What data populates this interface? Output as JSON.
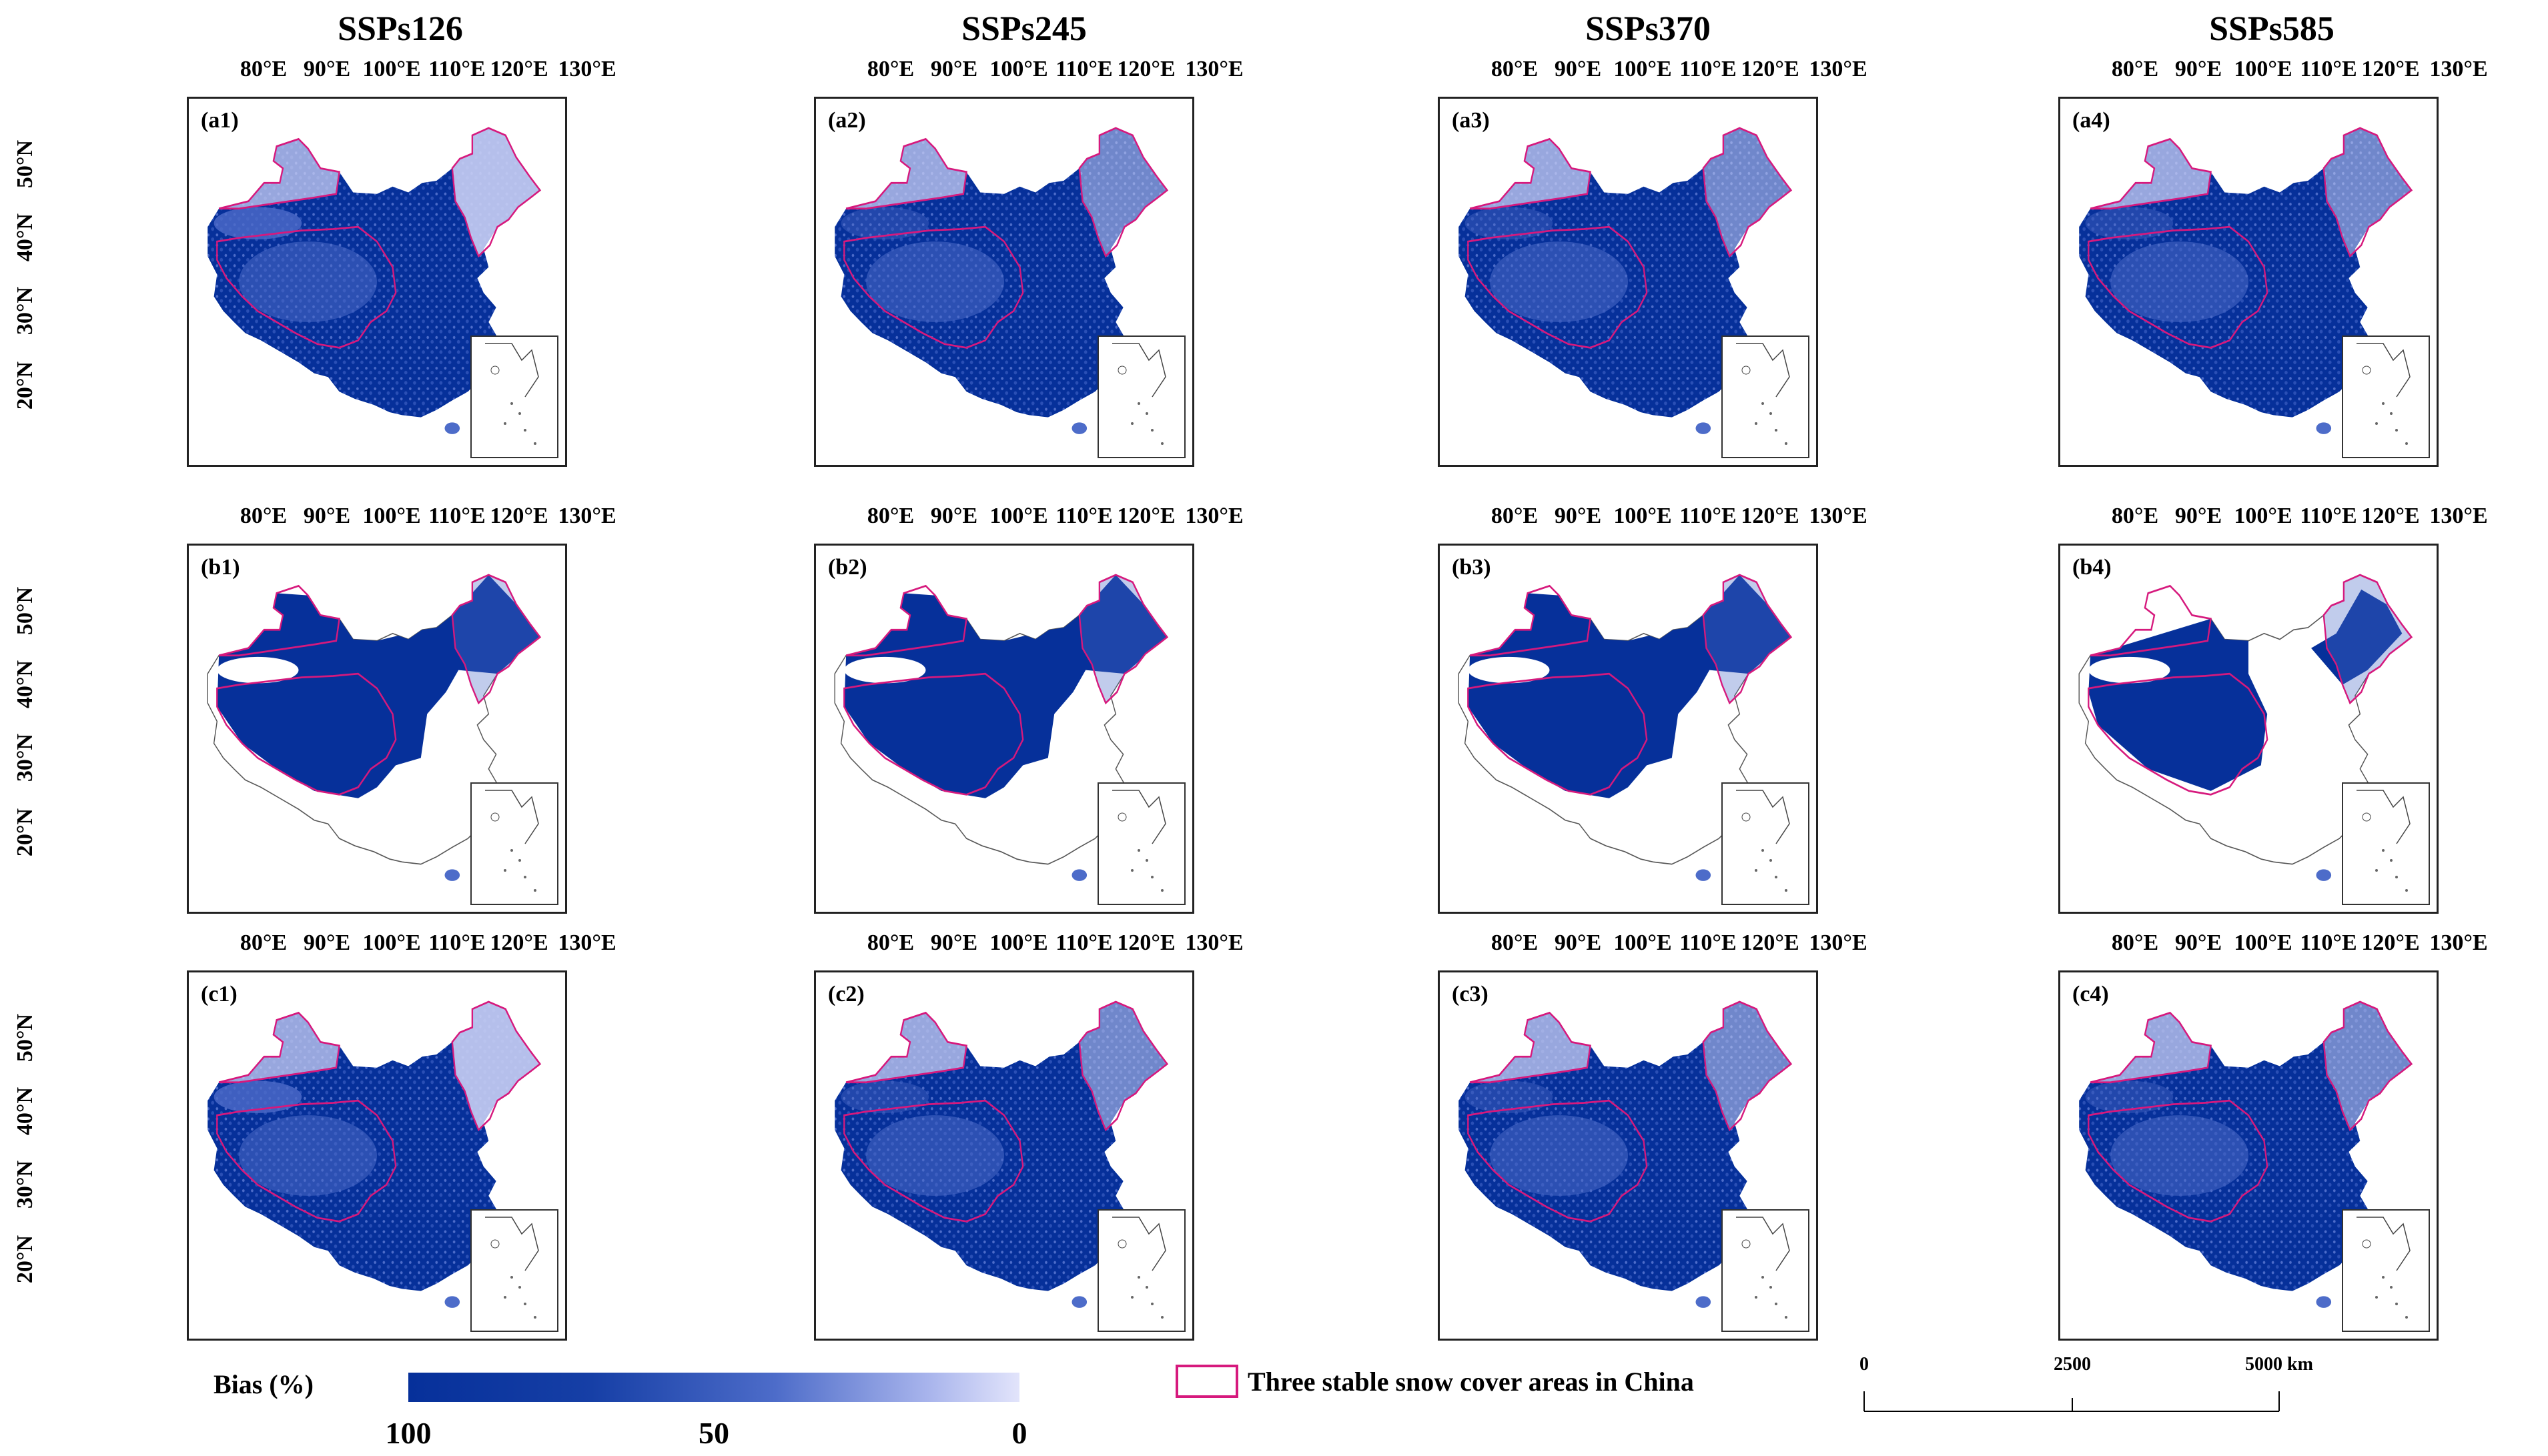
{
  "columns": [
    "SSPs126",
    "SSPs245",
    "SSPs370",
    "SSPs585"
  ],
  "longitude_labels": [
    "80°E",
    "90°E",
    "100°E",
    "110°E",
    "120°E",
    "130°E"
  ],
  "latitude_labels": [
    "50°N",
    "40°N",
    "30°N",
    "20°N"
  ],
  "rows": [
    {
      "labels": [
        "(a1)",
        "(a2)",
        "(a3)",
        "(a4)"
      ],
      "style": "full"
    },
    {
      "labels": [
        "(b1)",
        "(b2)",
        "(b3)",
        "(b4)"
      ],
      "style": "partial"
    },
    {
      "labels": [
        "(c1)",
        "(c2)",
        "(c3)",
        "(c4)"
      ],
      "style": "full"
    }
  ],
  "legend": {
    "title": "Bias  (%)",
    "ticks": [
      "100",
      "50",
      "0"
    ],
    "snow_area_label": "Three stable snow cover areas in China"
  },
  "scalebar": {
    "ticks": [
      "0",
      "2500",
      "5000 km"
    ]
  },
  "colors": {
    "dark_blue": "#06309a",
    "mid_blue": "#4d6cc9",
    "light_blue": "#c9cff4",
    "boundary": "#d6197d"
  }
}
